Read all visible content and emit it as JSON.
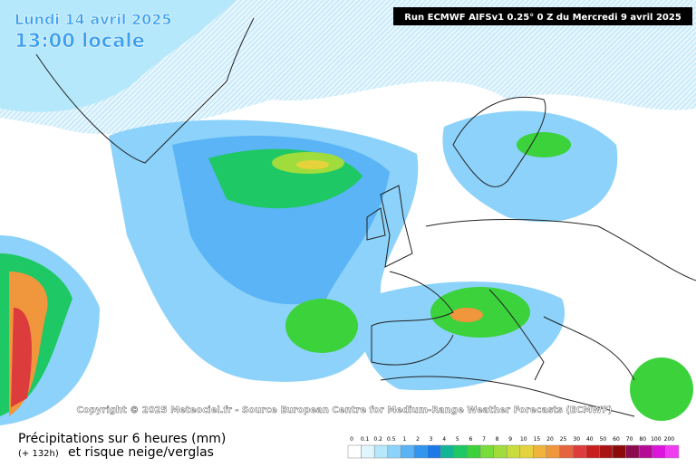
{
  "header": {
    "date": "Lundi 14 avril 2025",
    "time": "13:00 locale",
    "run": "Run ECMWF AIFSv1 0.25° 0 Z du Mercredi 9 avril 2025"
  },
  "copyright": "Copyright © 2025 Meteociel.fr - Source European Centre for Medium-Range Weather Forecasts (ECMWF)",
  "footer": {
    "title": "Précipitations sur 6 heures (mm)",
    "lead": "(+ 132h)",
    "subtitle": "et risque neige/verglas"
  },
  "legend": {
    "labels": [
      "0",
      "0.1",
      "0.2",
      "0.5",
      "1",
      "2",
      "3",
      "4",
      "5",
      "6",
      "7",
      "8",
      "9",
      "10",
      "15",
      "20",
      "25",
      "30",
      "40",
      "50",
      "60",
      "70",
      "80",
      "100",
      "200"
    ],
    "colors": [
      "#ffffff",
      "#e1f5fd",
      "#b4e8fa",
      "#8cd2fa",
      "#5ab4f5",
      "#3296ee",
      "#1e78e6",
      "#14b496",
      "#1ec864",
      "#3cd23c",
      "#78dc3c",
      "#a0dc3c",
      "#c8dc3c",
      "#e6d23c",
      "#f0b43c",
      "#f0963c",
      "#e6643c",
      "#dc3c3c",
      "#c81e1e",
      "#aa1414",
      "#8c0a0a",
      "#8c0a50",
      "#b40a96",
      "#dc14dc",
      "#f03cf0"
    ]
  }
}
